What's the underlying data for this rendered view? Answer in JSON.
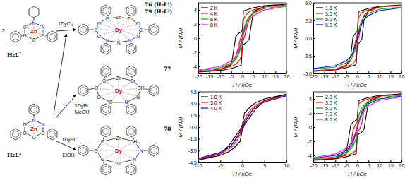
{
  "scheme": {
    "ligands": [
      {
        "label": "H₂L¹",
        "side_label": "2",
        "atoms": [
          "Zn",
          "N",
          "N",
          "O",
          "O",
          "O",
          "O"
        ]
      },
      {
        "label": "H₂L²",
        "atoms": [
          "Zn",
          "N",
          "N",
          "O",
          "O",
          "O",
          "O"
        ]
      }
    ],
    "reactions": [
      {
        "reagent": "1DyCl₃"
      },
      {
        "reagent": "1DyBr",
        "solvent": "MeOH"
      },
      {
        "reagent": "1DyBr",
        "solvent": "EtOH"
      }
    ],
    "products": [
      {
        "labels": [
          "76 (H₂L¹)",
          "79 (H₂L²)"
        ],
        "atoms": [
          "Dy",
          "Zn",
          "Zn",
          "Cl",
          "Cl",
          "N",
          "N",
          "N",
          "N",
          "O",
          "O",
          "O",
          "O"
        ]
      },
      {
        "labels": [
          "77"
        ],
        "atoms": [
          "Dy",
          "Zn",
          "Br",
          "OH",
          "N",
          "N",
          "O",
          "O",
          "O",
          "O"
        ]
      },
      {
        "labels": [
          "78"
        ],
        "atoms": [
          "Dy",
          "Zn",
          "OH₂",
          "N",
          "N",
          "O",
          "O",
          "O",
          "O"
        ]
      }
    ]
  },
  "chart_data": [
    {
      "type": "line",
      "x_label": "H / kOe",
      "y_label": "M / (Nβ)",
      "legend": "upper left",
      "grid": false,
      "x": [
        -20,
        -10,
        -5,
        -3,
        -2,
        -1,
        -0.5,
        0,
        0.5,
        1,
        2,
        3,
        5,
        10,
        20,
        10,
        5,
        3,
        2,
        1,
        0.5,
        0,
        -0.5,
        -1,
        -2,
        -3,
        -5,
        -10,
        -20
      ],
      "xlim": [
        -20,
        20
      ],
      "xticks": [
        -20,
        -15,
        -10,
        -5,
        0,
        5,
        10,
        15,
        20
      ],
      "ylim": [
        -5,
        5
      ],
      "yticks": [
        -4,
        -2,
        0,
        2,
        4
      ],
      "series": [
        {
          "name": "2 K",
          "color": "#000000",
          "values": [
            -4.8,
            -4.6,
            -4.3,
            -4.1,
            -4.0,
            -3.9,
            -3.8,
            -1.2,
            -0.9,
            -0.8,
            -0.6,
            -0.2,
            3.8,
            4.5,
            4.8,
            4.6,
            4.3,
            4.1,
            4.0,
            3.9,
            3.8,
            1.2,
            0.9,
            0.8,
            0.6,
            0.2,
            -3.8,
            -4.5,
            -4.8
          ]
        },
        {
          "name": "4 K",
          "color": "#ff0000",
          "values": [
            -4.7,
            -4.4,
            -4.0,
            -3.7,
            -3.4,
            -3.0,
            -2.5,
            -0.6,
            -0.2,
            0.2,
            1.5,
            2.6,
            3.7,
            4.4,
            4.7,
            4.4,
            4.0,
            3.7,
            3.4,
            3.0,
            2.5,
            0.6,
            0.2,
            -0.2,
            -1.5,
            -2.6,
            -3.7,
            -4.4,
            -4.7
          ]
        },
        {
          "name": "6 K",
          "color": "#00aa00",
          "values": [
            -4.6,
            -4.2,
            -3.6,
            -3.0,
            -2.5,
            -1.6,
            -0.9,
            -0.2,
            0.5,
            1.2,
            2.3,
            2.9,
            3.5,
            4.2,
            4.6,
            4.2,
            3.6,
            3.0,
            2.5,
            1.6,
            0.9,
            0.2,
            -0.5,
            -1.2,
            -2.3,
            -2.9,
            -3.5,
            -4.2,
            -4.6
          ]
        },
        {
          "name": "8 K",
          "color": "#ff00ff",
          "values": [
            -4.5,
            -4.0,
            -3.2,
            -2.5,
            -1.9,
            -1.0,
            -0.5,
            0,
            0.5,
            1.0,
            1.9,
            2.5,
            3.2,
            4.0,
            4.5,
            4.0,
            3.2,
            2.5,
            1.9,
            1.0,
            0.5,
            0,
            -0.5,
            -1.0,
            -1.9,
            -2.5,
            -3.2,
            -4.0,
            -4.5
          ]
        }
      ]
    },
    {
      "type": "line",
      "x_label": "H / kOe",
      "y_label": "M / (Nβ)",
      "legend": "upper left",
      "grid": false,
      "x": [
        -20,
        -10,
        -5,
        -3,
        -2,
        -1,
        -0.5,
        0,
        0.5,
        1,
        2,
        3,
        5,
        10,
        20,
        10,
        5,
        3,
        2,
        1,
        0.5,
        0,
        -0.5,
        -1,
        -2,
        -3,
        -5,
        -10,
        -20
      ],
      "xlim": [
        -20,
        20
      ],
      "xticks": [
        -20,
        -15,
        -10,
        -5,
        0,
        5,
        10,
        15,
        20
      ],
      "ylim": [
        -5,
        5
      ],
      "yticks": [
        {
          "value": -5,
          "label": "-5.0"
        },
        -2.5,
        {
          "value": 0,
          "label": "0.0"
        },
        2.5,
        {
          "value": 5,
          "label": "5.0"
        }
      ],
      "series": [
        {
          "name": "1.8 K",
          "color": "#000000",
          "values": [
            -4.7,
            -4.5,
            -4.2,
            -4.0,
            -3.9,
            -3.8,
            -3.6,
            -1.0,
            -0.8,
            -0.6,
            -0.2,
            2.5,
            3.9,
            4.5,
            4.7,
            4.5,
            4.2,
            4.0,
            3.9,
            3.8,
            3.6,
            1.0,
            0.8,
            0.6,
            0.2,
            -2.5,
            -3.9,
            -4.5,
            -4.7
          ]
        },
        {
          "name": "3.0 K",
          "color": "#ff0000",
          "values": [
            -4.6,
            -4.4,
            -4.0,
            -3.8,
            -3.6,
            -3.2,
            -2.8,
            -0.5,
            0,
            0.6,
            2.2,
            3.2,
            3.8,
            4.4,
            4.6,
            4.4,
            4.0,
            3.8,
            3.6,
            3.2,
            2.8,
            0.5,
            0,
            -0.6,
            -2.2,
            -3.2,
            -3.8,
            -4.4,
            -4.6
          ]
        },
        {
          "name": "5.0 K",
          "color": "#00aa00",
          "values": [
            -4.4,
            -4.1,
            -3.5,
            -3.0,
            -2.5,
            -1.6,
            -0.9,
            -0.1,
            0.7,
            1.5,
            2.5,
            3.0,
            3.5,
            4.1,
            4.4,
            4.1,
            3.5,
            3.0,
            2.5,
            1.6,
            0.9,
            0.1,
            -0.7,
            -1.5,
            -2.5,
            -3.0,
            -3.5,
            -4.1,
            -4.4
          ]
        },
        {
          "name": "6.0 K",
          "color": "#0000ff",
          "values": [
            -4.3,
            -3.9,
            -3.2,
            -2.6,
            -2.0,
            -1.1,
            -0.55,
            0,
            0.55,
            1.1,
            2.0,
            2.6,
            3.2,
            3.9,
            4.3,
            3.9,
            3.2,
            2.6,
            2.0,
            1.1,
            0.55,
            0,
            -0.55,
            -1.1,
            -2.0,
            -2.6,
            -3.2,
            -3.9,
            -4.3
          ]
        }
      ]
    },
    {
      "type": "line",
      "x_label": "H / kOe",
      "y_label": "M / (Nβ)",
      "legend": "upper left",
      "grid": false,
      "x": [
        -10,
        -5,
        -3,
        -2,
        -1,
        -0.5,
        0,
        0.5,
        1,
        2,
        3,
        5,
        10,
        5,
        3,
        2,
        1,
        0.5,
        0,
        -0.5,
        -1,
        -2,
        -3,
        -5,
        -10
      ],
      "xlim": [
        -10,
        10
      ],
      "xticks": [
        -10,
        -5,
        0,
        5,
        10
      ],
      "ylim": [
        -4.5,
        4.5
      ],
      "yticks": [
        -4.5,
        {
          "value": -3,
          "label": "-3.0"
        },
        -1.5,
        {
          "value": 0,
          "label": "0.0"
        },
        1.5,
        {
          "value": 3,
          "label": "3.0"
        },
        4.5
      ],
      "series": [
        {
          "name": "1.8 K",
          "color": "#000000",
          "values": [
            -4.2,
            -3.6,
            -3.1,
            -2.7,
            -2.1,
            -1.8,
            -0.3,
            0.3,
            0.7,
            1.5,
            2.3,
            3.4,
            4.2,
            3.6,
            3.1,
            2.7,
            2.1,
            1.8,
            0.3,
            -0.3,
            -0.7,
            -1.5,
            -2.3,
            -3.4,
            -4.2
          ]
        },
        {
          "name": "3.0 K",
          "color": "#ff0000",
          "values": [
            -4.1,
            -3.4,
            -2.8,
            -2.3,
            -1.5,
            -0.9,
            -0.1,
            0.5,
            1.0,
            1.9,
            2.6,
            3.3,
            4.1,
            3.4,
            2.8,
            2.3,
            1.5,
            0.9,
            0.1,
            -0.5,
            -1.0,
            -1.9,
            -2.6,
            -3.3,
            -4.1
          ]
        },
        {
          "name": "4.0 K",
          "color": "#0000ff",
          "values": [
            -4.0,
            -3.2,
            -2.6,
            -2.0,
            -1.1,
            -0.6,
            0,
            0.6,
            1.1,
            2.0,
            2.6,
            3.2,
            4.0,
            3.2,
            2.6,
            2.0,
            1.1,
            0.6,
            0,
            -0.6,
            -1.1,
            -2.0,
            -2.6,
            -3.2,
            -4.0
          ]
        }
      ]
    },
    {
      "type": "line",
      "x_label": "H / kOe",
      "y_label": "M / (Nβ)",
      "legend": "upper left",
      "grid": false,
      "x": [
        -20,
        -10,
        -5,
        -3,
        -2,
        -1,
        -0.5,
        0,
        0.5,
        1,
        2,
        3,
        5,
        10,
        20,
        10,
        5,
        3,
        2,
        1,
        0.5,
        0,
        -0.5,
        -1,
        -2,
        -3,
        -5,
        -10,
        -20
      ],
      "xlim": [
        -20,
        20
      ],
      "xticks": [
        -20,
        -15,
        -10,
        -5,
        0,
        5,
        10,
        15,
        20
      ],
      "ylim": [
        -5,
        5
      ],
      "yticks": [
        -4,
        -2,
        0,
        2,
        4
      ],
      "series": [
        {
          "name": "2.0 K",
          "color": "#000000",
          "values": [
            -4.7,
            -4.5,
            -4.2,
            -4.0,
            -3.9,
            -3.8,
            -3.7,
            -1.3,
            -1.0,
            -0.9,
            -0.7,
            -0.3,
            3.5,
            4.4,
            4.7,
            4.5,
            4.2,
            4.0,
            3.9,
            3.8,
            3.7,
            1.3,
            1.0,
            0.9,
            0.7,
            0.3,
            -3.5,
            -4.4,
            -4.7
          ]
        },
        {
          "name": "3.0 K",
          "color": "#ff0000",
          "values": [
            -4.6,
            -4.4,
            -4.0,
            -3.8,
            -3.6,
            -3.4,
            -3.2,
            -0.8,
            -0.5,
            -0.3,
            0.5,
            2.5,
            3.8,
            4.4,
            4.6,
            4.4,
            4.0,
            3.8,
            3.6,
            3.4,
            3.2,
            0.8,
            0.5,
            0.3,
            -0.5,
            -2.5,
            -3.8,
            -4.4,
            -4.6
          ]
        },
        {
          "name": "5.0 K",
          "color": "#00aa00",
          "values": [
            -4.5,
            -4.2,
            -3.6,
            -3.1,
            -2.7,
            -2.0,
            -1.4,
            -0.3,
            0.5,
            1.2,
            2.3,
            2.9,
            3.5,
            4.2,
            4.5,
            4.2,
            3.6,
            3.1,
            2.7,
            2.0,
            1.4,
            0.3,
            -0.5,
            -1.2,
            -2.3,
            -2.9,
            -3.5,
            -4.2,
            -4.5
          ]
        },
        {
          "name": "7.0 K",
          "color": "#0000ff",
          "values": [
            -4.4,
            -4.0,
            -3.3,
            -2.6,
            -2.0,
            -1.1,
            -0.55,
            0,
            0.55,
            1.1,
            2.0,
            2.6,
            3.3,
            4.0,
            4.4,
            4.0,
            3.3,
            2.6,
            2.0,
            1.1,
            0.55,
            0,
            -0.55,
            -1.1,
            -2.0,
            -2.6,
            -3.3,
            -4.0,
            -4.4
          ]
        },
        {
          "name": "8.0 K",
          "color": "#ff00ff",
          "values": [
            -4.3,
            -3.8,
            -3.0,
            -2.3,
            -1.7,
            -0.9,
            -0.45,
            0,
            0.45,
            0.9,
            1.7,
            2.3,
            3.0,
            3.8,
            4.3,
            3.8,
            3.0,
            2.3,
            1.7,
            0.9,
            0.45,
            0,
            -0.45,
            -0.9,
            -1.7,
            -2.3,
            -3.0,
            -3.8,
            -4.3
          ]
        }
      ]
    }
  ]
}
